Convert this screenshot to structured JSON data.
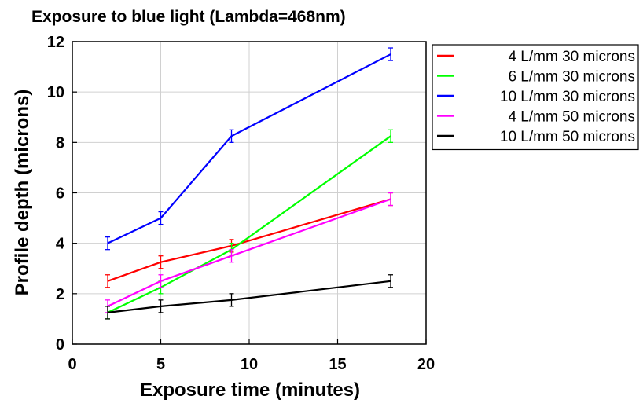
{
  "chart_data": {
    "type": "line",
    "title": "Exposure to blue light (Lambda=468nm)",
    "xlabel": "Exposure time (minutes)",
    "ylabel": "Profile depth (microns)",
    "xlim": [
      0,
      20
    ],
    "ylim": [
      0,
      12
    ],
    "xticks": [
      "0",
      "5",
      "10",
      "15",
      "20"
    ],
    "yticks": [
      "0",
      "2",
      "4",
      "6",
      "8",
      "10",
      "12"
    ],
    "grid": true,
    "legend_position": "outside-top-right",
    "series": [
      {
        "name": "4 L/mm 30 microns",
        "color": "#ff0000",
        "x": [
          2,
          5,
          9,
          18
        ],
        "y": [
          2.5,
          3.25,
          3.9,
          5.75
        ],
        "err": [
          0.25,
          0.25,
          0.25,
          0.25
        ]
      },
      {
        "name": "6 L/mm 30 microns",
        "color": "#00ff00",
        "x": [
          2,
          5,
          9,
          18
        ],
        "y": [
          1.25,
          2.25,
          3.75,
          8.25
        ],
        "err": [
          0.25,
          0.25,
          0.25,
          0.25
        ]
      },
      {
        "name": "10 L/mm 30 microns",
        "color": "#0000ff",
        "x": [
          2,
          5,
          9,
          18
        ],
        "y": [
          4.0,
          5.0,
          8.25,
          11.5
        ],
        "err": [
          0.25,
          0.25,
          0.25,
          0.25
        ]
      },
      {
        "name": "4 L/mm 50 microns",
        "color": "#ff00ff",
        "x": [
          2,
          5,
          9,
          18
        ],
        "y": [
          1.5,
          2.5,
          3.5,
          5.75
        ],
        "err": [
          0.25,
          0.25,
          0.25,
          0.25
        ]
      },
      {
        "name": "10 L/mm 50 microns",
        "color": "#000000",
        "x": [
          2,
          5,
          9,
          18
        ],
        "y": [
          1.25,
          1.5,
          1.75,
          2.5
        ],
        "err": [
          0.25,
          0.25,
          0.25,
          0.25
        ]
      }
    ]
  }
}
